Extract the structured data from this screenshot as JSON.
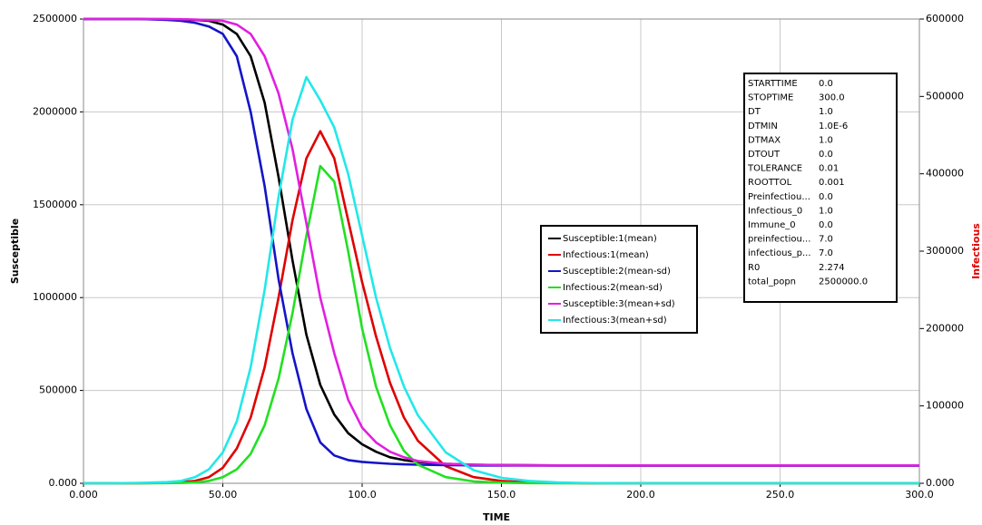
{
  "chart_data": {
    "type": "line",
    "x_label": "TIME",
    "y_label": "Susceptible",
    "y2_label": "Infectious",
    "x": [
      0,
      10,
      20,
      30,
      35,
      40,
      45,
      50,
      55,
      60,
      65,
      70,
      75,
      80,
      85,
      90,
      95,
      100,
      105,
      110,
      115,
      120,
      130,
      140,
      150,
      160,
      170,
      180,
      190,
      200,
      250,
      300
    ],
    "series": [
      {
        "name": "Susceptible:1(mean)",
        "color": "#000000",
        "values": [
          2500000,
          2500000,
          2500000,
          2499000,
          2498000,
          2495000,
          2490000,
          2470000,
          2420000,
          2300000,
          2050000,
          1650000,
          1200000,
          800000,
          530000,
          370000,
          270000,
          210000,
          170000,
          140000,
          125000,
          115000,
          105000,
          100000,
          98000,
          97000,
          96000,
          96000,
          95000,
          95000,
          95000,
          95000
        ]
      },
      {
        "name": "Infectious:1(mean)",
        "color": "#e00000",
        "axis": "y2",
        "values": [
          0,
          0,
          0,
          500,
          1500,
          3000,
          8000,
          20000,
          45000,
          85000,
          150000,
          240000,
          340000,
          420000,
          455000,
          420000,
          340000,
          260000,
          190000,
          130000,
          85000,
          55000,
          22000,
          8000,
          3000,
          1000,
          300,
          100,
          0,
          0,
          0,
          0
        ]
      },
      {
        "name": "Susceptible:2(mean-sd)",
        "color": "#1414c8",
        "values": [
          2500000,
          2500000,
          2500000,
          2495000,
          2490000,
          2480000,
          2460000,
          2420000,
          2300000,
          2000000,
          1600000,
          1100000,
          700000,
          400000,
          220000,
          150000,
          125000,
          115000,
          110000,
          105000,
          102000,
          100000,
          98000,
          96000,
          95000,
          95000,
          95000,
          95000,
          95000,
          95000,
          95000,
          95000
        ]
      },
      {
        "name": "Infectious:2(mean-sd)",
        "color": "#22e022",
        "axis": "y2",
        "values": [
          0,
          0,
          0,
          200,
          500,
          1000,
          3000,
          8000,
          18000,
          38000,
          75000,
          135000,
          220000,
          320000,
          410000,
          390000,
          300000,
          200000,
          125000,
          75000,
          42000,
          24000,
          8000,
          2500,
          800,
          200,
          50,
          0,
          0,
          0,
          0,
          0
        ]
      },
      {
        "name": "Susceptible:3(mean+sd)",
        "color": "#e020e0",
        "values": [
          2500000,
          2500000,
          2500000,
          2500000,
          2499000,
          2497000,
          2494000,
          2490000,
          2470000,
          2420000,
          2300000,
          2100000,
          1800000,
          1400000,
          1000000,
          700000,
          450000,
          300000,
          220000,
          170000,
          140000,
          120000,
          105000,
          100000,
          97000,
          96000,
          96000,
          96000,
          96000,
          96000,
          96000,
          96000
        ]
      },
      {
        "name": "Infectious:3(mean+sd)",
        "color": "#22e8e8",
        "axis": "y2",
        "values": [
          0,
          0,
          500,
          1500,
          3000,
          8000,
          18000,
          40000,
          80000,
          150000,
          250000,
          370000,
          470000,
          525000,
          495000,
          460000,
          400000,
          320000,
          240000,
          175000,
          125000,
          88000,
          40000,
          17000,
          7000,
          3000,
          1000,
          300,
          100,
          0,
          0,
          0
        ]
      }
    ],
    "xlim": [
      0,
      300
    ],
    "xticks": [
      {
        "value": 0,
        "label": "0.000"
      },
      {
        "value": 50,
        "label": "50.00"
      },
      {
        "value": 100,
        "label": "100.0"
      },
      {
        "value": 150,
        "label": "150.0"
      },
      {
        "value": 200,
        "label": "200.0"
      },
      {
        "value": 250,
        "label": "250.0"
      },
      {
        "value": 300,
        "label": "300.0"
      }
    ],
    "ylim": [
      0,
      2500000
    ],
    "yticks": [
      {
        "value": 0,
        "label": "0.000"
      },
      500000,
      1000000,
      1500000,
      2000000,
      2500000
    ],
    "y2lim": [
      0,
      600000
    ],
    "y2ticks": [
      {
        "value": 0,
        "label": "0.000"
      },
      100000,
      200000,
      300000,
      400000,
      500000,
      600000
    ],
    "grid": true,
    "parameters": [
      [
        "STARTTIME",
        "0.0"
      ],
      [
        "STOPTIME",
        "300.0"
      ],
      [
        "DT",
        "1.0"
      ],
      [
        "DTMIN",
        "1.0E-6"
      ],
      [
        "DTMAX",
        "1.0"
      ],
      [
        "DTOUT",
        "0.0"
      ],
      [
        "TOLERANCE",
        "0.01"
      ],
      [
        "ROOTTOL",
        "0.001"
      ],
      [
        "Preinfectiou...",
        "0.0"
      ],
      [
        "Infectious_0",
        "1.0"
      ],
      [
        "Immune_0",
        "0.0"
      ],
      [
        "preinfectiou...",
        "7.0"
      ],
      [
        "infectious_p...",
        "7.0"
      ],
      [
        "R0",
        "2.274"
      ],
      [
        "total_popn",
        "2500000.0"
      ]
    ]
  }
}
